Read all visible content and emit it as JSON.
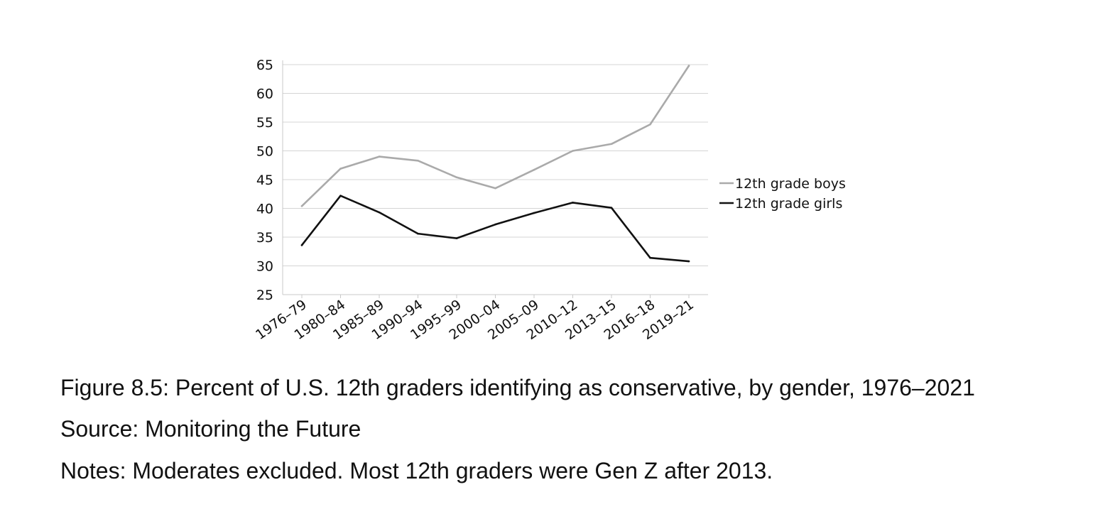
{
  "chart_data": {
    "type": "line",
    "categories": [
      "1976–79",
      "1980–84",
      "1985–89",
      "1990–94",
      "1995–99",
      "2000–04",
      "2005–09",
      "2010–12",
      "2013–15",
      "2016–18",
      "2019–21"
    ],
    "series": [
      {
        "name": "12th grade boys",
        "color": "#aaaaaa",
        "values": [
          40.4,
          46.9,
          49.0,
          48.3,
          45.4,
          43.5,
          46.7,
          50.0,
          51.2,
          54.6,
          64.8
        ]
      },
      {
        "name": "12th grade girls",
        "color": "#111111",
        "values": [
          33.6,
          42.2,
          39.3,
          35.6,
          34.8,
          37.2,
          39.2,
          41.0,
          40.1,
          31.4,
          30.8
        ]
      }
    ],
    "ylim": [
      25,
      65
    ],
    "yticks": [
      25,
      30,
      35,
      40,
      45,
      50,
      55,
      60,
      65
    ],
    "grid": true,
    "legend_position": "right",
    "title": "",
    "xlabel": "",
    "ylabel": ""
  },
  "caption": {
    "title": "Figure 8.5: Percent of U.S. 12th graders identifying as conservative, by gender, 1976–2021",
    "source": "Source: Monitoring the Future",
    "notes": "Notes: Moderates excluded. Most 12th graders were Gen Z after 2013."
  }
}
